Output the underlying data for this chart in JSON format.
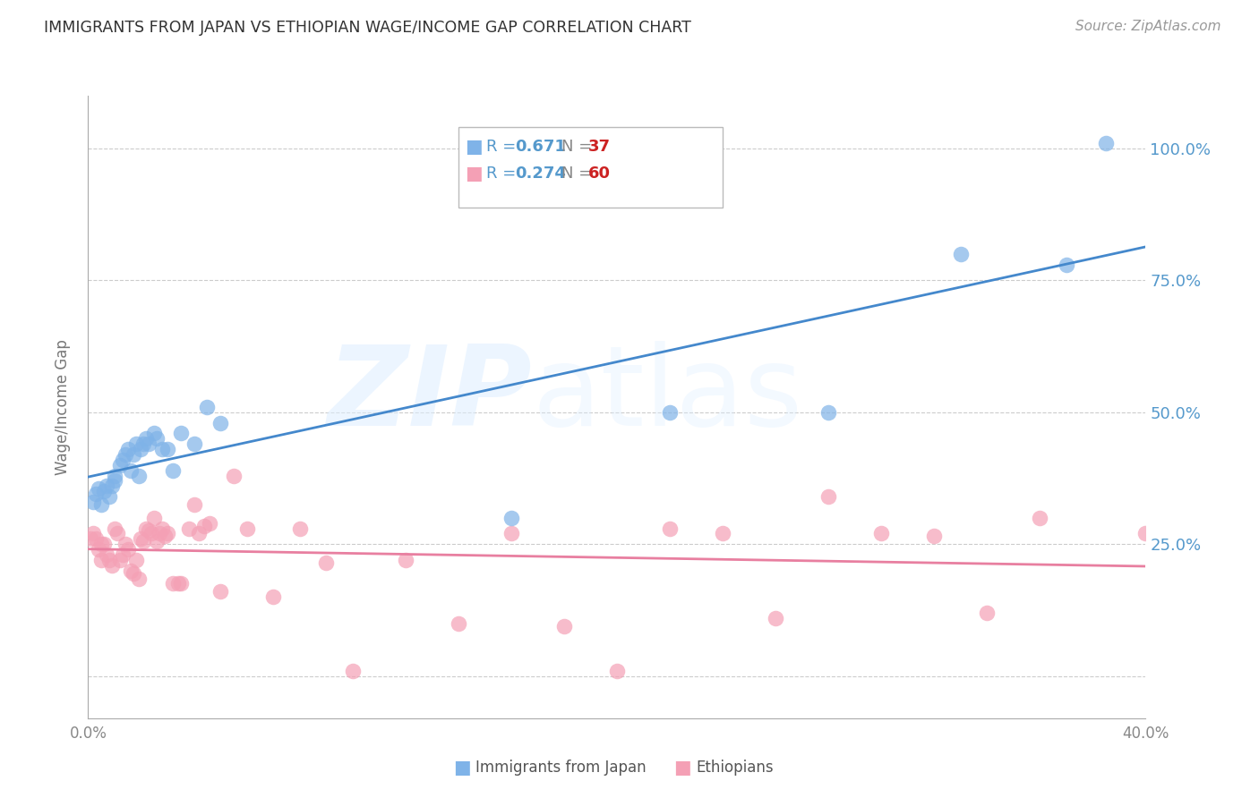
{
  "title": "IMMIGRANTS FROM JAPAN VS ETHIOPIAN WAGE/INCOME GAP CORRELATION CHART",
  "source": "Source: ZipAtlas.com",
  "ylabel": "Wage/Income Gap",
  "xlim": [
    0.0,
    0.4
  ],
  "ylim": [
    -0.08,
    1.1
  ],
  "yticks": [
    0.0,
    0.25,
    0.5,
    0.75,
    1.0
  ],
  "ytick_labels": [
    "",
    "25.0%",
    "50.0%",
    "75.0%",
    "100.0%"
  ],
  "xticks": [
    0.0,
    0.08,
    0.16,
    0.24,
    0.32,
    0.4
  ],
  "xtick_labels": [
    "0.0%",
    "",
    "",
    "",
    "",
    "40.0%"
  ],
  "japan_color": "#7fb3e8",
  "ethiopia_color": "#f4a0b5",
  "japan_R": "0.671",
  "japan_N": "37",
  "ethiopia_R": "0.274",
  "ethiopia_N": "60",
  "japan_line_color": "#4488cc",
  "ethiopia_line_color": "#e87fa0",
  "watermark_zip": "ZIP",
  "watermark_atlas": "atlas",
  "background_color": "#ffffff",
  "grid_color": "#cccccc",
  "axis_tick_color": "#5599cc",
  "title_color": "#333333",
  "japan_x": [
    0.002,
    0.003,
    0.004,
    0.005,
    0.006,
    0.007,
    0.008,
    0.009,
    0.01,
    0.01,
    0.012,
    0.013,
    0.014,
    0.015,
    0.016,
    0.017,
    0.018,
    0.019,
    0.02,
    0.021,
    0.022,
    0.023,
    0.025,
    0.026,
    0.028,
    0.03,
    0.032,
    0.035,
    0.04,
    0.045,
    0.05,
    0.16,
    0.22,
    0.28,
    0.33,
    0.37,
    0.385
  ],
  "japan_y": [
    0.33,
    0.345,
    0.355,
    0.325,
    0.35,
    0.36,
    0.34,
    0.36,
    0.37,
    0.38,
    0.4,
    0.41,
    0.42,
    0.43,
    0.39,
    0.42,
    0.44,
    0.38,
    0.43,
    0.44,
    0.45,
    0.44,
    0.46,
    0.45,
    0.43,
    0.43,
    0.39,
    0.46,
    0.44,
    0.51,
    0.48,
    0.3,
    0.5,
    0.5,
    0.8,
    0.78,
    1.01
  ],
  "ethiopia_x": [
    0.001,
    0.002,
    0.003,
    0.004,
    0.005,
    0.005,
    0.006,
    0.007,
    0.008,
    0.009,
    0.01,
    0.011,
    0.012,
    0.013,
    0.014,
    0.015,
    0.016,
    0.017,
    0.018,
    0.019,
    0.02,
    0.021,
    0.022,
    0.023,
    0.024,
    0.025,
    0.026,
    0.027,
    0.028,
    0.029,
    0.03,
    0.032,
    0.034,
    0.035,
    0.038,
    0.04,
    0.042,
    0.044,
    0.046,
    0.05,
    0.055,
    0.06,
    0.07,
    0.08,
    0.09,
    0.1,
    0.12,
    0.14,
    0.16,
    0.18,
    0.2,
    0.22,
    0.24,
    0.26,
    0.28,
    0.3,
    0.32,
    0.34,
    0.36,
    0.4
  ],
  "ethiopia_y": [
    0.26,
    0.27,
    0.26,
    0.24,
    0.22,
    0.25,
    0.25,
    0.23,
    0.22,
    0.21,
    0.28,
    0.27,
    0.22,
    0.23,
    0.25,
    0.24,
    0.2,
    0.195,
    0.22,
    0.185,
    0.26,
    0.255,
    0.28,
    0.275,
    0.27,
    0.3,
    0.255,
    0.27,
    0.28,
    0.265,
    0.27,
    0.175,
    0.175,
    0.175,
    0.28,
    0.325,
    0.27,
    0.285,
    0.29,
    0.16,
    0.38,
    0.28,
    0.15,
    0.28,
    0.215,
    0.01,
    0.22,
    0.1,
    0.27,
    0.095,
    0.01,
    0.28,
    0.27,
    0.11,
    0.34,
    0.27,
    0.265,
    0.12,
    0.3,
    0.27
  ]
}
